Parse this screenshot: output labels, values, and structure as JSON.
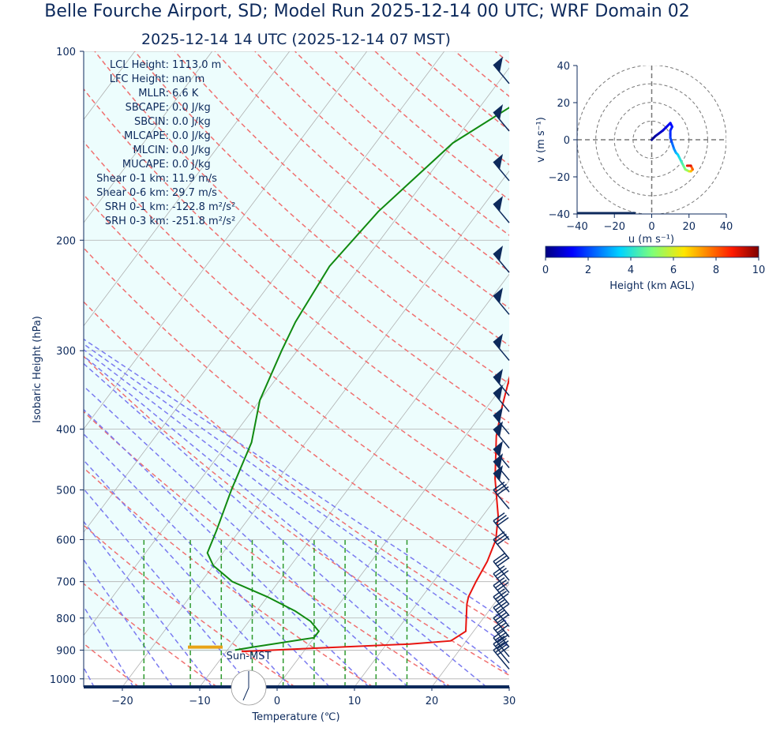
{
  "title": "Belle Fourche Airport, SD; Model Run 2025-12-14 00 UTC; WRF Domain 02",
  "subtitle": "2025-12-14 14 UTC  (2025-12-14 07 MST)",
  "colors": {
    "text": "#0d2a5c",
    "temperature": "#e8140f",
    "dewpoint": "#118a11",
    "dry_adiabat": "#f07070",
    "moist_adiabat": "#7a7af0",
    "mixing_ratio": "#2e9a2e",
    "cape_fill": "#edfdfd",
    "lcl_marker": "#e8a317",
    "barb": "#0d2a5c"
  },
  "indices": [
    {
      "label": "LCL Height:",
      "value": "1113.0 m"
    },
    {
      "label": "LFC Height:",
      "value": "nan m"
    },
    {
      "label": "MLLR:",
      "value": "6.6 K"
    },
    {
      "label": "SBCAPE:",
      "value": "0.0 J/kg"
    },
    {
      "label": "SBCIN:",
      "value": "0.0 J/kg"
    },
    {
      "label": "MLCAPE:",
      "value": "0.0 J/kg"
    },
    {
      "label": "MLCIN:",
      "value": "0.0 J/kg"
    },
    {
      "label": "MUCAPE:",
      "value": "0.0 J/kg"
    },
    {
      "label": "Shear 0-1 km:",
      "value": "11.9 m/s"
    },
    {
      "label": "Shear 0-6 km:",
      "value": "29.7 m/s"
    },
    {
      "label": "SRH 0-1 km:",
      "value": "-122.8 m²/s²"
    },
    {
      "label": "SRH 0-3 km:",
      "value": "-251.8 m²/s²"
    }
  ],
  "sun_label": "Sun-MST",
  "chart_data": [
    {
      "type": "line",
      "name": "skew-T",
      "xlabel": "Temperature (℃)",
      "ylabel": "Isobaric Height (hPa)",
      "xlim": [
        -25,
        30
      ],
      "ylim": [
        1030,
        100
      ],
      "y_log": true,
      "skew": true,
      "x_ticks": [
        -20,
        -10,
        0,
        10,
        20,
        30
      ],
      "y_ticks": [
        100,
        200,
        300,
        400,
        500,
        600,
        700,
        800,
        900,
        1000
      ],
      "series": [
        {
          "key": "temperature",
          "points": [
            [
              1.5,
              100
            ],
            [
              10,
              130
            ],
            [
              12,
              150
            ],
            [
              7,
              190
            ],
            [
              -2,
              220
            ],
            [
              -2,
              260
            ],
            [
              -1,
              290
            ],
            [
              0,
              330
            ],
            [
              2,
              370
            ],
            [
              4,
              410
            ],
            [
              8,
              480
            ],
            [
              12,
              550
            ],
            [
              14,
              600
            ],
            [
              15,
              650
            ],
            [
              15.5,
              700
            ],
            [
              16,
              740
            ],
            [
              16.5,
              760
            ],
            [
              19,
              840
            ],
            [
              18,
              870
            ],
            [
              13,
              880
            ],
            [
              0,
              895
            ],
            [
              -8,
              905
            ]
          ]
        },
        {
          "key": "dewpoint",
          "points": [
            [
              -20,
              100
            ],
            [
              -30,
              140
            ],
            [
              -33,
              180
            ],
            [
              -34,
              220
            ],
            [
              -33,
              270
            ],
            [
              -32,
              300
            ],
            [
              -30,
              360
            ],
            [
              -27,
              420
            ],
            [
              -25,
              500
            ],
            [
              -23,
              580
            ],
            [
              -22,
              630
            ],
            [
              -20,
              660
            ],
            [
              -16,
              700
            ],
            [
              -10,
              740
            ],
            [
              -5,
              780
            ],
            [
              -2,
              810
            ],
            [
              0,
              840
            ],
            [
              0,
              860
            ],
            [
              -7,
              890
            ],
            [
              -9,
              900
            ]
          ]
        }
      ],
      "lcl_marker_pressure": 890,
      "wind_barbs_hPa": [
        105,
        125,
        150,
        175,
        210,
        245,
        290,
        330,
        350,
        380,
        400,
        430,
        450,
        470,
        500,
        560,
        600,
        650,
        680,
        710,
        740,
        770,
        800,
        830,
        860,
        880,
        900
      ]
    },
    {
      "type": "scatter",
      "name": "hodograph",
      "xlabel": "u (m s⁻¹)",
      "ylabel": "v (m s⁻¹)",
      "xlim": [
        -40,
        40
      ],
      "ylim": [
        -40,
        40
      ],
      "x_ticks": [
        -40,
        -20,
        0,
        20,
        40
      ],
      "y_ticks": [
        -40,
        -20,
        0,
        20,
        40
      ],
      "rings": [
        10,
        20,
        30,
        40
      ],
      "colorbar": {
        "label": "Height (km AGL)",
        "range": [
          0,
          10
        ],
        "ticks": [
          0,
          2,
          4,
          6,
          8,
          10
        ]
      },
      "points": [
        [
          0,
          0,
          0.1
        ],
        [
          2,
          2,
          0.3
        ],
        [
          4,
          3.5,
          0.5
        ],
        [
          6,
          5,
          0.8
        ],
        [
          8,
          7,
          1.0
        ],
        [
          10,
          9,
          1.2
        ],
        [
          11,
          7,
          1.4
        ],
        [
          10,
          5,
          1.6
        ],
        [
          10,
          1,
          1.8
        ],
        [
          11,
          -2,
          2.2
        ],
        [
          12,
          -5,
          2.6
        ],
        [
          13,
          -7,
          3.0
        ],
        [
          14,
          -8,
          3.4
        ],
        [
          15,
          -10,
          3.8
        ],
        [
          16,
          -12,
          4.2
        ],
        [
          17,
          -14,
          4.6
        ],
        [
          18,
          -16,
          5.0
        ],
        [
          20,
          -17,
          5.5
        ],
        [
          21,
          -17,
          6.5
        ],
        [
          22,
          -16,
          7.5
        ],
        [
          21,
          -14,
          8.5
        ],
        [
          19,
          -14,
          9.5
        ]
      ]
    }
  ]
}
